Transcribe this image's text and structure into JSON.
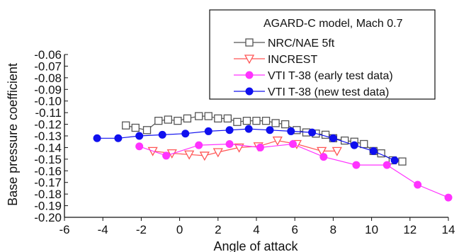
{
  "chart_data": {
    "type": "line",
    "title": "",
    "xlabel": "Angle of attack",
    "ylabel": "Base pressure coefficient",
    "xlim": [
      -6,
      14
    ],
    "ylim": [
      -0.2,
      -0.06
    ],
    "xticks": [
      "-6",
      "-4",
      "-2",
      "0",
      "2",
      "4",
      "6",
      "8",
      "10",
      "12",
      "14"
    ],
    "yticks": [
      "-0.06",
      "-0.07",
      "-0.08",
      "-0.09",
      "-0.10",
      "-0.11",
      "-0.12",
      "-0.13",
      "-0.14",
      "-0.15",
      "-0.16",
      "-0.17",
      "-0.18",
      "-0.19",
      "-0.20"
    ],
    "grid": false,
    "legend": {
      "title": "AGARD-C model, Mach 0.7",
      "position": "top-right"
    },
    "series": [
      {
        "name": "NRC/NAE 5ft",
        "color": "#555555",
        "marker": "open-square",
        "x": [
          -2.8,
          -2.3,
          -1.7,
          -1.1,
          -0.6,
          -0.1,
          0.4,
          1.0,
          1.5,
          2.0,
          2.5,
          3.0,
          3.5,
          4.0,
          4.5,
          5.0,
          5.5,
          6.1,
          6.6,
          7.1,
          7.6,
          8.0,
          8.6,
          9.1,
          9.6,
          10.1,
          10.5,
          11.1,
          11.6
        ],
        "y": [
          -0.121,
          -0.123,
          -0.125,
          -0.117,
          -0.116,
          -0.117,
          -0.115,
          -0.113,
          -0.113,
          -0.115,
          -0.115,
          -0.118,
          -0.117,
          -0.117,
          -0.117,
          -0.119,
          -0.12,
          -0.125,
          -0.127,
          -0.128,
          -0.129,
          -0.132,
          -0.134,
          -0.135,
          -0.137,
          -0.143,
          -0.145,
          -0.151,
          -0.152
        ]
      },
      {
        "name": "INCREST",
        "color": "#ff5555",
        "marker": "open-triangle-down",
        "x": [
          -1.4,
          -0.4,
          0.5,
          1.3,
          2.0,
          3.1,
          4.1,
          5.1,
          6.1,
          7.4,
          8.2
        ],
        "y": [
          -0.143,
          -0.145,
          -0.146,
          -0.147,
          -0.144,
          -0.14,
          -0.139,
          -0.134,
          -0.137,
          -0.143,
          -0.143
        ]
      },
      {
        "name": "VTI T-38 (early test data)",
        "color": "#ff33ff",
        "marker": "filled-circle",
        "x": [
          -2.1,
          -0.7,
          1.0,
          2.6,
          4.2,
          5.9,
          7.5,
          9.2,
          10.8,
          12.4,
          14.0
        ],
        "y": [
          -0.139,
          -0.147,
          -0.138,
          -0.137,
          -0.14,
          -0.137,
          -0.148,
          -0.155,
          -0.155,
          -0.172,
          -0.183
        ]
      },
      {
        "name": "VTI T-38 (new test data)",
        "color": "#1010ee",
        "marker": "filled-circle",
        "x": [
          -4.3,
          -3.2,
          -2.1,
          -0.9,
          0.3,
          1.5,
          2.6,
          3.6,
          4.7,
          5.8,
          6.9,
          8.0,
          9.1,
          10.1,
          11.2
        ],
        "y": [
          -0.132,
          -0.132,
          -0.13,
          -0.129,
          -0.128,
          -0.126,
          -0.125,
          -0.124,
          -0.125,
          -0.126,
          -0.127,
          -0.132,
          -0.138,
          -0.143,
          -0.151
        ]
      }
    ]
  }
}
